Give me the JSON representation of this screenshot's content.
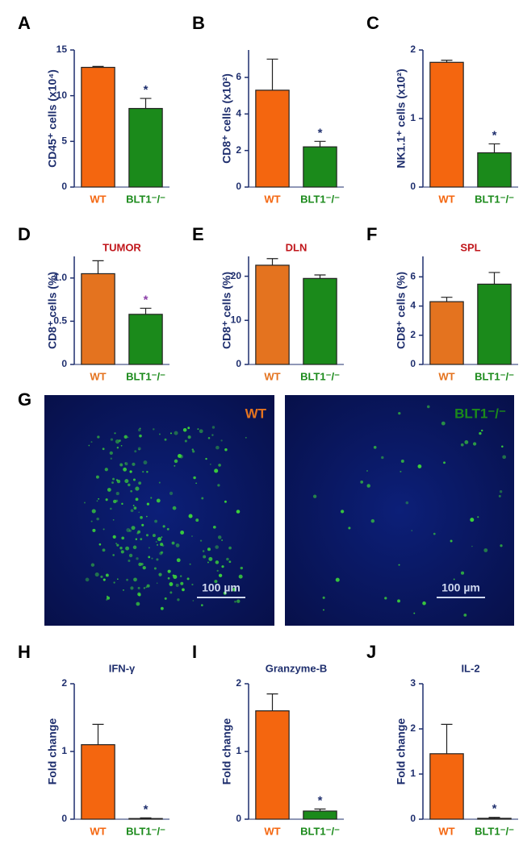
{
  "chart_data": [
    {
      "type": "bar",
      "panel": "A",
      "ylabel": "CD45⁺ cells (x10⁴)",
      "categories": [
        "WT",
        "BLT1⁻/⁻"
      ],
      "values": [
        13.1,
        8.6
      ],
      "errors": [
        0.1,
        1.1
      ],
      "colors": [
        "#f4660f",
        "#1b8a1b"
      ],
      "significance": [
        null,
        "*"
      ],
      "significance_color": "#1f2f6e",
      "ylim": [
        0,
        15
      ],
      "yticks": [
        0,
        5,
        10,
        15
      ]
    },
    {
      "type": "bar",
      "panel": "B",
      "ylabel": "CD8⁺ cells (x10²)",
      "categories": [
        "WT",
        "BLT1⁻/⁻"
      ],
      "values": [
        5.3,
        2.2
      ],
      "errors": [
        1.7,
        0.3
      ],
      "colors": [
        "#f4660f",
        "#1b8a1b"
      ],
      "significance": [
        null,
        "*"
      ],
      "significance_color": "#1f2f6e",
      "ylim": [
        0,
        7.5
      ],
      "yticks": [
        0,
        2,
        4,
        6
      ]
    },
    {
      "type": "bar",
      "panel": "C",
      "ylabel": "NK1.1⁺ cells (x10²)",
      "categories": [
        "WT",
        "BLT1⁻/⁻"
      ],
      "values": [
        1.82,
        0.5
      ],
      "errors": [
        0.03,
        0.13
      ],
      "colors": [
        "#f4660f",
        "#1b8a1b"
      ],
      "significance": [
        null,
        "*"
      ],
      "significance_color": "#1f2f6e",
      "ylim": [
        0,
        2
      ],
      "yticks": [
        0,
        1,
        2
      ]
    },
    {
      "type": "bar",
      "panel": "D",
      "title": "TUMOR",
      "title_color": "#c0161b",
      "ylabel": "CD8⁺ cells (%)",
      "categories": [
        "WT",
        "BLT1⁻/⁻"
      ],
      "values": [
        1.05,
        0.58
      ],
      "errors": [
        0.15,
        0.07
      ],
      "colors": [
        "#e4731f",
        "#1b8a1b"
      ],
      "significance": [
        null,
        "*"
      ],
      "significance_color": "#8b3fa8",
      "ylim": [
        0,
        1.25
      ],
      "yticks": [
        0,
        0.5,
        {
          "value": 1,
          "label": "1.0"
        }
      ]
    },
    {
      "type": "bar",
      "panel": "E",
      "title": "DLN",
      "title_color": "#c0161b",
      "ylabel": "CD8⁺ cells (%)",
      "categories": [
        "WT",
        "BLT1⁻/⁻"
      ],
      "values": [
        22.5,
        19.5
      ],
      "errors": [
        1.5,
        0.8
      ],
      "colors": [
        "#e4731f",
        "#1b8a1b"
      ],
      "significance": [
        null,
        null
      ],
      "significance_color": "#1f2f6e",
      "ylim": [
        0,
        24.5
      ],
      "yticks": [
        0,
        10,
        20
      ]
    },
    {
      "type": "bar",
      "panel": "F",
      "title": "SPL",
      "title_color": "#c0161b",
      "ylabel": "CD8⁺ cells (%)",
      "categories": [
        "WT",
        "BLT1⁻/⁻"
      ],
      "values": [
        4.3,
        5.5
      ],
      "errors": [
        0.3,
        0.8
      ],
      "colors": [
        "#e4731f",
        "#1b8a1b"
      ],
      "significance": [
        null,
        null
      ],
      "significance_color": "#1f2f6e",
      "ylim": [
        0,
        7.4
      ],
      "yticks": [
        0,
        2,
        4,
        6
      ]
    },
    {
      "type": "bar",
      "panel": "H",
      "title": "IFN-γ",
      "title_color": "#1f2f6e",
      "ylabel": "Fold change",
      "categories": [
        "WT",
        "BLT1⁻/⁻"
      ],
      "values": [
        1.1,
        0.01
      ],
      "errors": [
        0.3,
        0.01
      ],
      "colors": [
        "#f4660f",
        "#1b8a1b"
      ],
      "significance": [
        null,
        "*"
      ],
      "significance_color": "#1f2f6e",
      "ylim": [
        0,
        2
      ],
      "yticks": [
        0,
        1,
        2
      ]
    },
    {
      "type": "bar",
      "panel": "I",
      "title": "Granzyme-B",
      "title_color": "#1f2f6e",
      "ylabel": "Fold change",
      "categories": [
        "WT",
        "BLT1⁻/⁻"
      ],
      "values": [
        1.6,
        0.12
      ],
      "errors": [
        0.25,
        0.03
      ],
      "colors": [
        "#f4660f",
        "#1b8a1b"
      ],
      "significance": [
        null,
        "*"
      ],
      "significance_color": "#1f2f6e",
      "ylim": [
        0,
        2
      ],
      "yticks": [
        0,
        1,
        2
      ]
    },
    {
      "type": "bar",
      "panel": "J",
      "title": "IL-2",
      "title_color": "#1f2f6e",
      "ylabel": "Fold change",
      "categories": [
        "WT",
        "BLT1⁻/⁻"
      ],
      "values": [
        1.45,
        0.02
      ],
      "errors": [
        0.65,
        0.02
      ],
      "colors": [
        "#f4660f",
        "#1b8a1b"
      ],
      "significance": [
        null,
        "*"
      ],
      "significance_color": "#1f2f6e",
      "ylim": [
        0,
        3
      ],
      "yticks": [
        0,
        1,
        2,
        3
      ]
    }
  ],
  "figure_g": {
    "panel": "G",
    "images": [
      {
        "label": "WT",
        "label_color": "#e4731f",
        "scale_bar": "100 µm"
      },
      {
        "label": "BLT1⁻/⁻",
        "label_color": "#1b8a1b",
        "scale_bar": "100 µm"
      }
    ]
  }
}
